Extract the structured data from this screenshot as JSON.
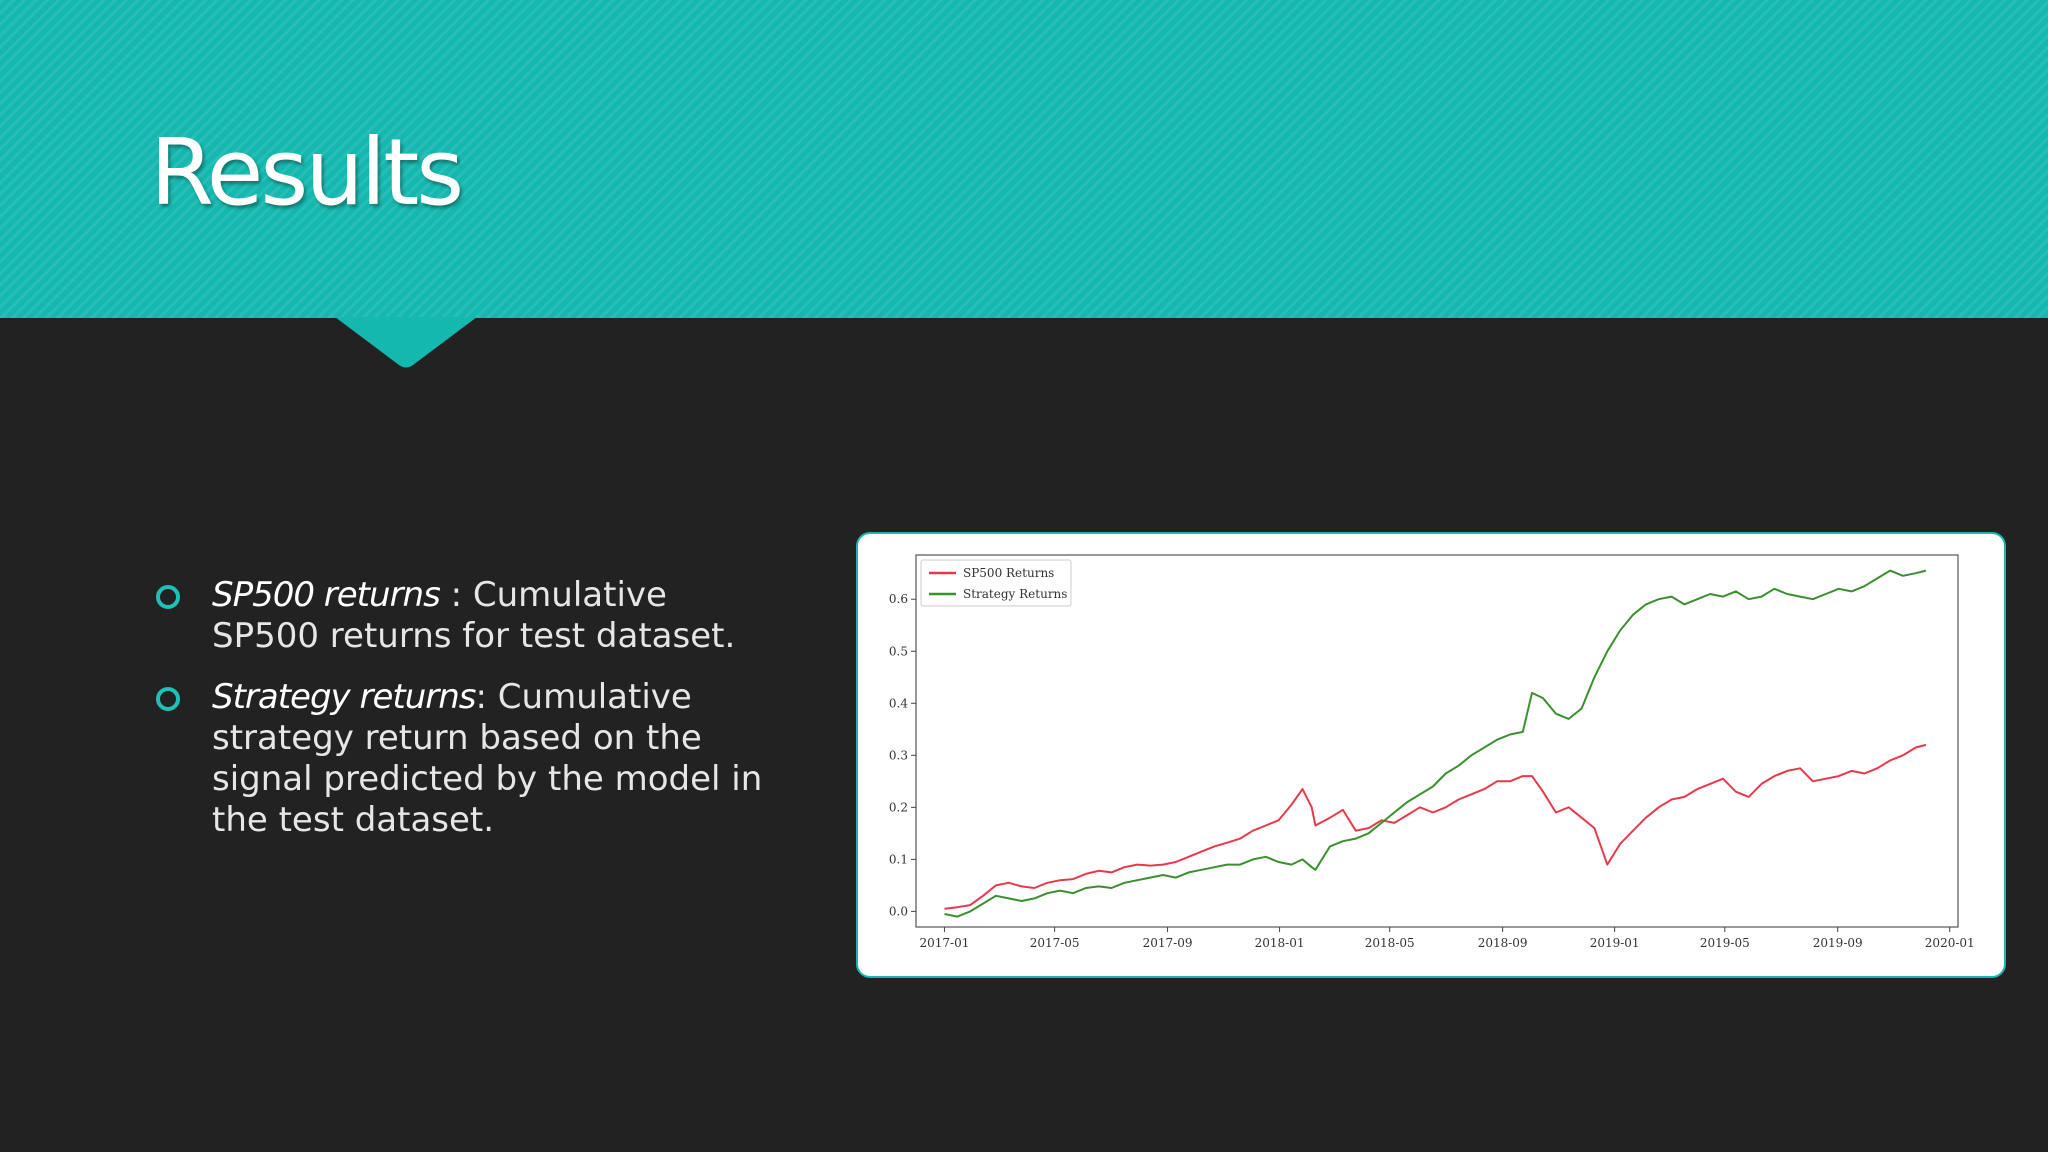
{
  "slide": {
    "title": "Results"
  },
  "bullets": [
    {
      "term": "SP500 returns",
      "sep": " : ",
      "text": "Cumulative  SP500 returns for test dataset."
    },
    {
      "term": "Strategy returns",
      "sep": ": ",
      "text": "Cumulative strategy return based on the signal predicted by the model in the test dataset."
    }
  ],
  "colors": {
    "header": "#14b8ae",
    "background": "#222223",
    "accent": "#1fc1b6",
    "series_sp500": "#e8394a",
    "series_strategy": "#3a8f2e"
  },
  "chart_data": {
    "type": "line",
    "x_type": "date",
    "xlim": [
      "2016-12-01",
      "2020-01-10"
    ],
    "ylim": [
      -0.03,
      0.685
    ],
    "xticks": [
      "2017-01",
      "2017-05",
      "2017-09",
      "2018-01",
      "2018-05",
      "2018-09",
      "2019-01",
      "2019-05",
      "2019-09",
      "2020-01"
    ],
    "yticks": [
      0.0,
      0.1,
      0.2,
      0.3,
      0.4,
      0.5,
      0.6
    ],
    "ytick_labels": [
      "0.0",
      "0.1",
      "0.2",
      "0.3",
      "0.4",
      "0.5",
      "0.6"
    ],
    "legend_position": "top-left",
    "grid": false,
    "series": [
      {
        "name": "SP500 Returns",
        "color": "#e8394a",
        "points": [
          [
            "2017-01-01",
            0.005
          ],
          [
            "2017-01-15",
            0.008
          ],
          [
            "2017-01-29",
            0.012
          ],
          [
            "2017-02-12",
            0.03
          ],
          [
            "2017-02-26",
            0.05
          ],
          [
            "2017-03-12",
            0.055
          ],
          [
            "2017-03-26",
            0.048
          ],
          [
            "2017-04-09",
            0.045
          ],
          [
            "2017-04-23",
            0.055
          ],
          [
            "2017-05-07",
            0.06
          ],
          [
            "2017-05-21",
            0.062
          ],
          [
            "2017-06-04",
            0.072
          ],
          [
            "2017-06-18",
            0.078
          ],
          [
            "2017-07-02",
            0.075
          ],
          [
            "2017-07-16",
            0.085
          ],
          [
            "2017-07-30",
            0.09
          ],
          [
            "2017-08-13",
            0.088
          ],
          [
            "2017-08-27",
            0.09
          ],
          [
            "2017-09-10",
            0.095
          ],
          [
            "2017-09-24",
            0.105
          ],
          [
            "2017-10-08",
            0.115
          ],
          [
            "2017-10-22",
            0.125
          ],
          [
            "2017-11-05",
            0.132
          ],
          [
            "2017-11-19",
            0.14
          ],
          [
            "2017-12-03",
            0.155
          ],
          [
            "2017-12-17",
            0.165
          ],
          [
            "2017-12-31",
            0.175
          ],
          [
            "2018-01-14",
            0.205
          ],
          [
            "2018-01-26",
            0.235
          ],
          [
            "2018-02-05",
            0.2
          ],
          [
            "2018-02-09",
            0.165
          ],
          [
            "2018-02-25",
            0.18
          ],
          [
            "2018-03-11",
            0.195
          ],
          [
            "2018-03-25",
            0.155
          ],
          [
            "2018-04-08",
            0.16
          ],
          [
            "2018-04-22",
            0.175
          ],
          [
            "2018-05-06",
            0.17
          ],
          [
            "2018-05-20",
            0.185
          ],
          [
            "2018-06-03",
            0.2
          ],
          [
            "2018-06-17",
            0.19
          ],
          [
            "2018-07-01",
            0.2
          ],
          [
            "2018-07-15",
            0.215
          ],
          [
            "2018-07-29",
            0.225
          ],
          [
            "2018-08-12",
            0.235
          ],
          [
            "2018-08-26",
            0.25
          ],
          [
            "2018-09-09",
            0.25
          ],
          [
            "2018-09-23",
            0.26
          ],
          [
            "2018-10-03",
            0.26
          ],
          [
            "2018-10-15",
            0.23
          ],
          [
            "2018-10-29",
            0.19
          ],
          [
            "2018-11-12",
            0.2
          ],
          [
            "2018-11-26",
            0.18
          ],
          [
            "2018-12-10",
            0.16
          ],
          [
            "2018-12-24",
            0.09
          ],
          [
            "2019-01-07",
            0.13
          ],
          [
            "2019-01-21",
            0.155
          ],
          [
            "2019-02-04",
            0.18
          ],
          [
            "2019-02-18",
            0.2
          ],
          [
            "2019-03-04",
            0.215
          ],
          [
            "2019-03-18",
            0.22
          ],
          [
            "2019-04-01",
            0.235
          ],
          [
            "2019-04-15",
            0.245
          ],
          [
            "2019-04-29",
            0.255
          ],
          [
            "2019-05-13",
            0.23
          ],
          [
            "2019-05-27",
            0.22
          ],
          [
            "2019-06-10",
            0.245
          ],
          [
            "2019-06-24",
            0.26
          ],
          [
            "2019-07-08",
            0.27
          ],
          [
            "2019-07-22",
            0.275
          ],
          [
            "2019-08-05",
            0.25
          ],
          [
            "2019-08-19",
            0.255
          ],
          [
            "2019-09-02",
            0.26
          ],
          [
            "2019-09-16",
            0.27
          ],
          [
            "2019-09-30",
            0.265
          ],
          [
            "2019-10-14",
            0.275
          ],
          [
            "2019-10-28",
            0.29
          ],
          [
            "2019-11-11",
            0.3
          ],
          [
            "2019-11-25",
            0.315
          ],
          [
            "2019-12-06",
            0.32
          ]
        ]
      },
      {
        "name": "Strategy Returns",
        "color": "#3a8f2e",
        "points": [
          [
            "2017-01-01",
            -0.005
          ],
          [
            "2017-01-15",
            -0.01
          ],
          [
            "2017-01-29",
            0.0
          ],
          [
            "2017-02-12",
            0.015
          ],
          [
            "2017-02-26",
            0.03
          ],
          [
            "2017-03-12",
            0.025
          ],
          [
            "2017-03-26",
            0.02
          ],
          [
            "2017-04-09",
            0.025
          ],
          [
            "2017-04-23",
            0.035
          ],
          [
            "2017-05-07",
            0.04
          ],
          [
            "2017-05-21",
            0.035
          ],
          [
            "2017-06-04",
            0.045
          ],
          [
            "2017-06-18",
            0.048
          ],
          [
            "2017-07-02",
            0.045
          ],
          [
            "2017-07-16",
            0.055
          ],
          [
            "2017-07-30",
            0.06
          ],
          [
            "2017-08-13",
            0.065
          ],
          [
            "2017-08-27",
            0.07
          ],
          [
            "2017-09-10",
            0.065
          ],
          [
            "2017-09-24",
            0.075
          ],
          [
            "2017-10-08",
            0.08
          ],
          [
            "2017-10-22",
            0.085
          ],
          [
            "2017-11-05",
            0.09
          ],
          [
            "2017-11-19",
            0.09
          ],
          [
            "2017-12-03",
            0.1
          ],
          [
            "2017-12-17",
            0.105
          ],
          [
            "2017-12-31",
            0.095
          ],
          [
            "2018-01-14",
            0.09
          ],
          [
            "2018-01-26",
            0.1
          ],
          [
            "2018-02-05",
            0.085
          ],
          [
            "2018-02-09",
            0.08
          ],
          [
            "2018-02-25",
            0.125
          ],
          [
            "2018-03-11",
            0.135
          ],
          [
            "2018-03-25",
            0.14
          ],
          [
            "2018-04-08",
            0.15
          ],
          [
            "2018-04-22",
            0.17
          ],
          [
            "2018-05-06",
            0.19
          ],
          [
            "2018-05-20",
            0.21
          ],
          [
            "2018-06-03",
            0.225
          ],
          [
            "2018-06-17",
            0.24
          ],
          [
            "2018-07-01",
            0.265
          ],
          [
            "2018-07-15",
            0.28
          ],
          [
            "2018-07-29",
            0.3
          ],
          [
            "2018-08-12",
            0.315
          ],
          [
            "2018-08-26",
            0.33
          ],
          [
            "2018-09-09",
            0.34
          ],
          [
            "2018-09-23",
            0.345
          ],
          [
            "2018-10-03",
            0.42
          ],
          [
            "2018-10-15",
            0.41
          ],
          [
            "2018-10-29",
            0.38
          ],
          [
            "2018-11-12",
            0.37
          ],
          [
            "2018-11-26",
            0.39
          ],
          [
            "2018-12-10",
            0.45
          ],
          [
            "2018-12-24",
            0.5
          ],
          [
            "2019-01-07",
            0.54
          ],
          [
            "2019-01-21",
            0.57
          ],
          [
            "2019-02-04",
            0.59
          ],
          [
            "2019-02-18",
            0.6
          ],
          [
            "2019-03-04",
            0.605
          ],
          [
            "2019-03-18",
            0.59
          ],
          [
            "2019-04-01",
            0.6
          ],
          [
            "2019-04-15",
            0.61
          ],
          [
            "2019-04-29",
            0.605
          ],
          [
            "2019-05-13",
            0.615
          ],
          [
            "2019-05-27",
            0.6
          ],
          [
            "2019-06-10",
            0.605
          ],
          [
            "2019-06-24",
            0.62
          ],
          [
            "2019-07-08",
            0.61
          ],
          [
            "2019-07-22",
            0.605
          ],
          [
            "2019-08-05",
            0.6
          ],
          [
            "2019-08-19",
            0.61
          ],
          [
            "2019-09-02",
            0.62
          ],
          [
            "2019-09-16",
            0.615
          ],
          [
            "2019-09-30",
            0.625
          ],
          [
            "2019-10-14",
            0.64
          ],
          [
            "2019-10-28",
            0.655
          ],
          [
            "2019-11-11",
            0.645
          ],
          [
            "2019-11-25",
            0.65
          ],
          [
            "2019-12-06",
            0.655
          ]
        ]
      }
    ]
  }
}
